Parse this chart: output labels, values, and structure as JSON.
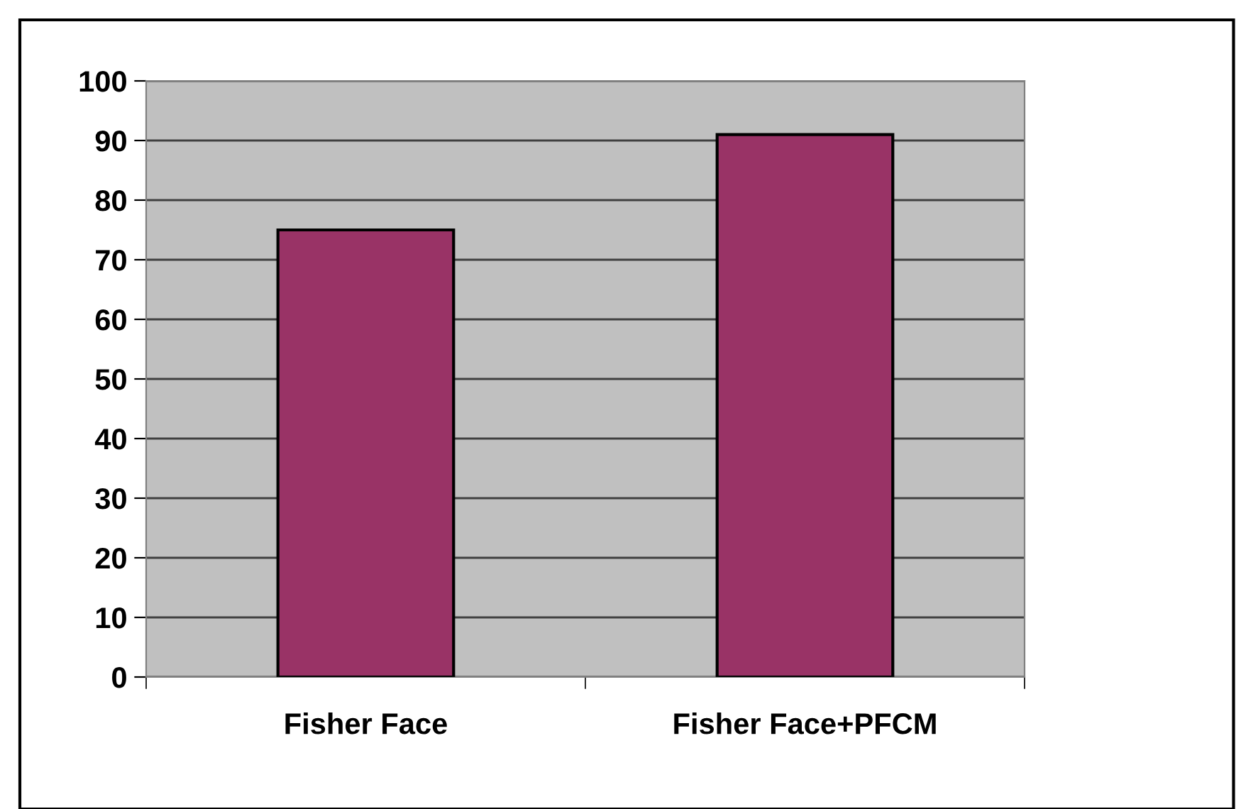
{
  "chart_data": {
    "type": "bar",
    "categories": [
      "Fisher Face",
      "Fisher Face+PFCM"
    ],
    "values": [
      75,
      91
    ],
    "color": "#993366",
    "ylim": [
      0,
      100
    ],
    "yticks": [
      0,
      10,
      20,
      30,
      40,
      50,
      60,
      70,
      80,
      90,
      100
    ],
    "grid": "y",
    "legend": false
  }
}
